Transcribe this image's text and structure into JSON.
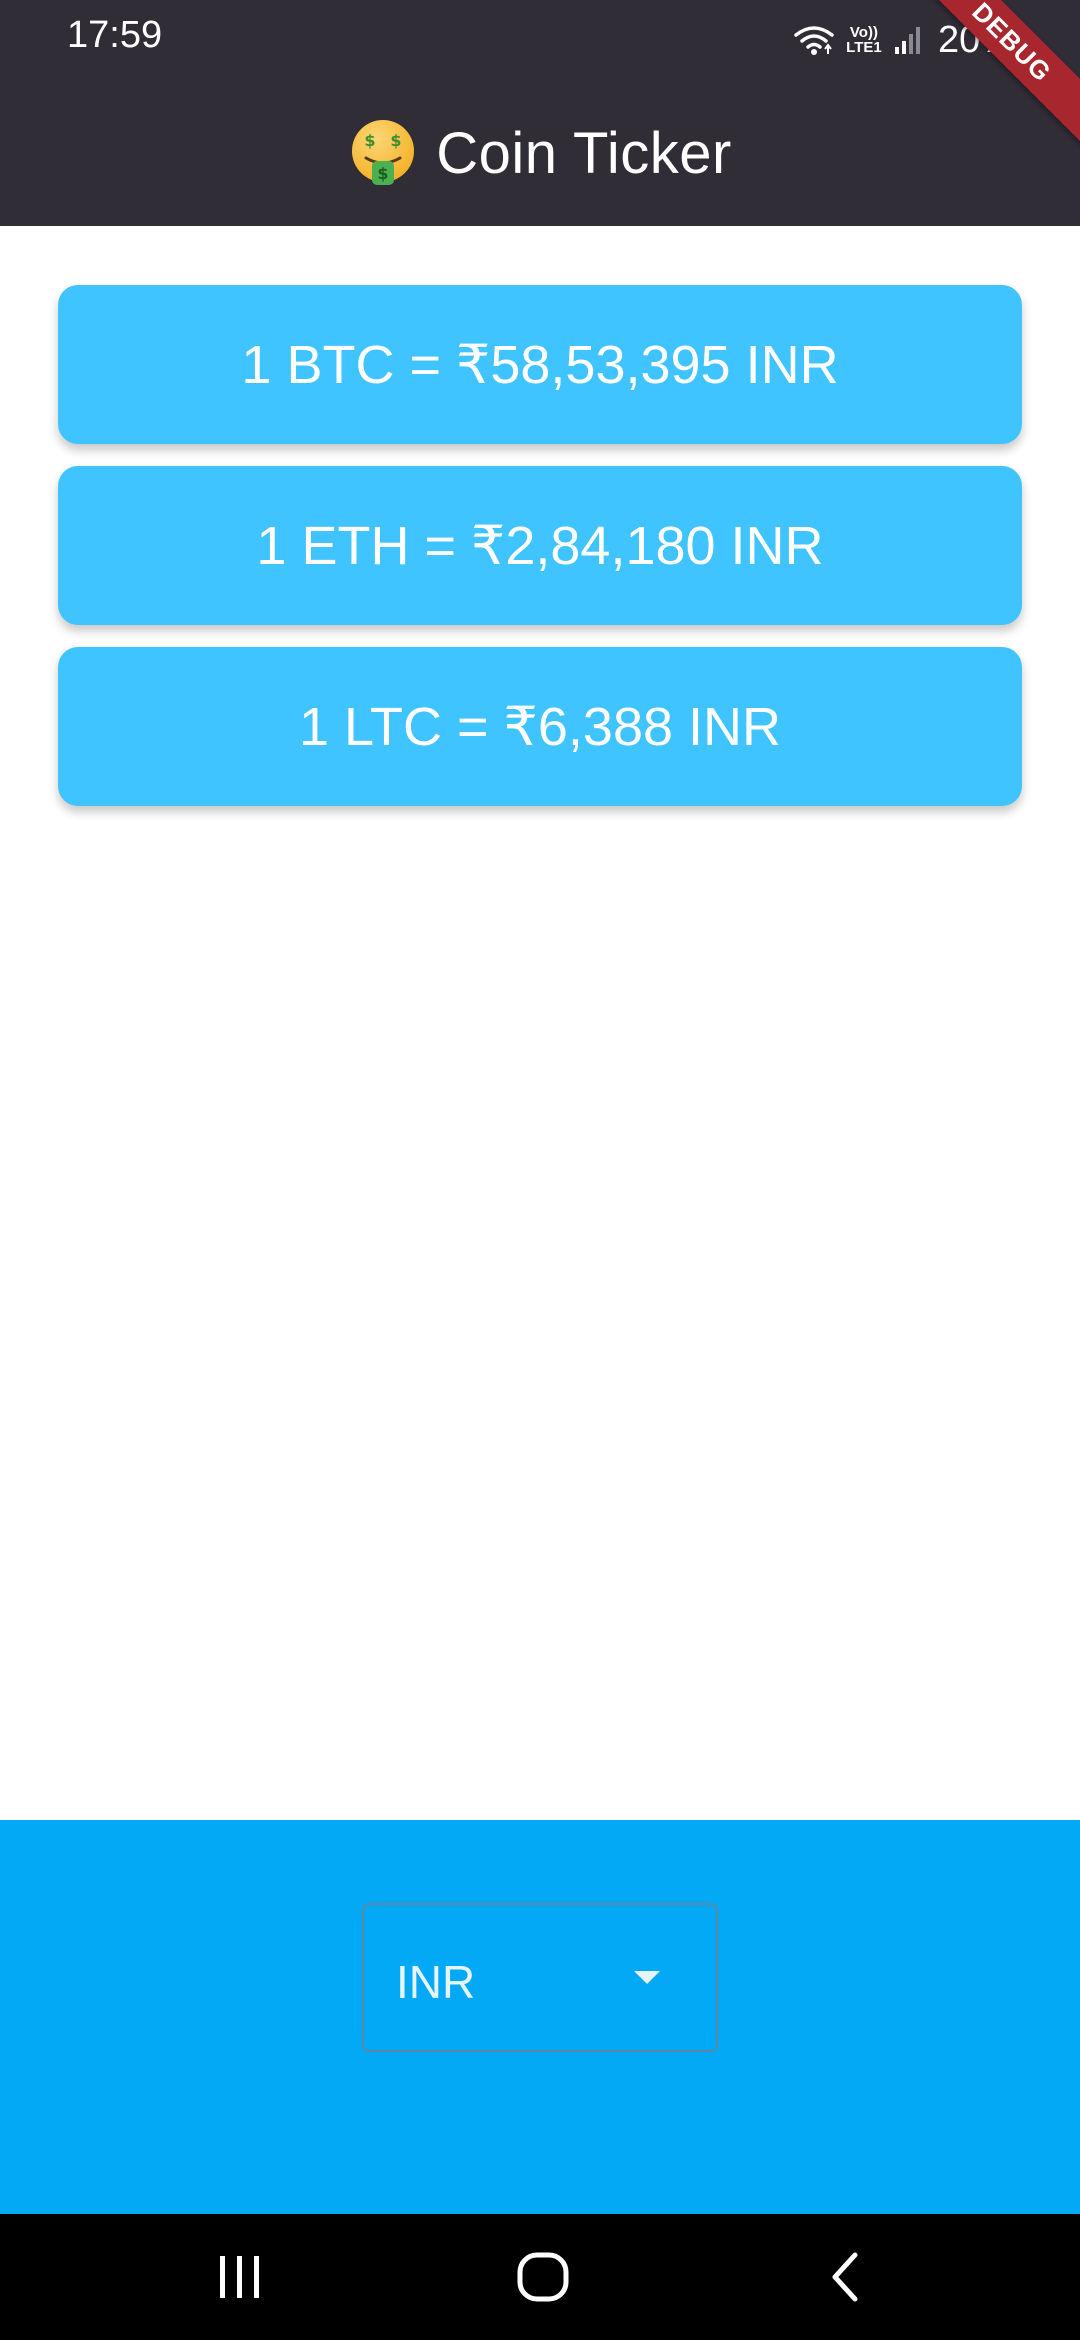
{
  "status_bar": {
    "time": "17:59",
    "network_label_top": "Vo))",
    "network_label_bottom": "LTE1",
    "battery": "20%"
  },
  "debug_banner": "DEBUG",
  "app_bar": {
    "emoji_icon": "money-mouth-face-icon",
    "title": "Coin Ticker"
  },
  "rates": [
    {
      "label": "1 BTC = ₹58,53,395 INR"
    },
    {
      "label": "1 ETH = ₹2,84,180 INR"
    },
    {
      "label": "1 LTC = ₹6,388 INR"
    }
  ],
  "currency_picker": {
    "selected": "INR"
  },
  "colors": {
    "app_bar": "#302d37",
    "card": "#40c4ff",
    "picker_area": "#03a9f4",
    "debug_banner": "#a8262e"
  },
  "nav_bar": {
    "icons": [
      "recent-apps-icon",
      "home-icon",
      "back-icon"
    ]
  }
}
